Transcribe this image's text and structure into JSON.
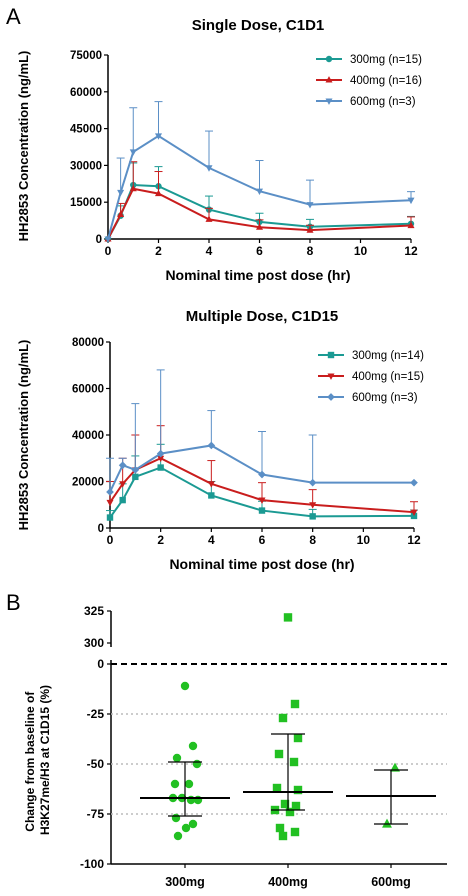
{
  "panel_labels": {
    "a": "A",
    "b": "B"
  },
  "colors": {
    "teal": "#1b9a93",
    "red": "#c91d1d",
    "blue": "#5b8fc6",
    "green": "#22c022",
    "axis": "#000000",
    "grid": "#bbbbbb"
  },
  "chart_data": [
    {
      "type": "line",
      "title": "Single Dose, C1D1",
      "xlabel": "Nominal time post dose (hr)",
      "ylabel": "HH2853 Concentration (ng/mL)",
      "xlim": [
        0,
        12
      ],
      "ylim": [
        0,
        75000
      ],
      "xticks": [
        0,
        2,
        4,
        6,
        8,
        10,
        12
      ],
      "yticks": [
        0,
        15000,
        30000,
        45000,
        60000,
        75000
      ],
      "legend_position": "top-right",
      "series": [
        {
          "name": "300mg (n=15)",
          "color": "#1b9a93",
          "marker": "circle",
          "x": [
            0,
            0.5,
            1,
            2,
            4,
            6,
            8,
            12
          ],
          "y": [
            0,
            9500,
            22000,
            21500,
            12000,
            7000,
            5000,
            6200
          ],
          "err": [
            0,
            4000,
            9000,
            8000,
            5500,
            3500,
            3000,
            3000
          ]
        },
        {
          "name": "400mg (n=16)",
          "color": "#c91d1d",
          "marker": "triangle-up",
          "x": [
            0,
            0.5,
            1,
            2,
            4,
            6,
            8,
            12
          ],
          "y": [
            0,
            10000,
            20500,
            18500,
            8000,
            4800,
            3600,
            5500
          ],
          "err": [
            0,
            4500,
            11000,
            9000,
            4500,
            3000,
            2000,
            3500
          ]
        },
        {
          "name": "600mg (n=3)",
          "color": "#5b8fc6",
          "marker": "triangle-down",
          "x": [
            0,
            0.5,
            1,
            2,
            4,
            6,
            8,
            12
          ],
          "y": [
            0,
            19000,
            35500,
            42000,
            29000,
            19500,
            14000,
            15800
          ],
          "err": [
            0,
            14000,
            18000,
            14000,
            15000,
            12500,
            10000,
            3500
          ]
        }
      ]
    },
    {
      "type": "line",
      "title": "Multiple Dose, C1D15",
      "xlabel": "Nominal time post dose (hr)",
      "ylabel": "HH2853 Concentration (ng/mL)",
      "xlim": [
        0,
        12
      ],
      "ylim": [
        0,
        80000
      ],
      "xticks": [
        0,
        2,
        4,
        6,
        8,
        10,
        12
      ],
      "yticks": [
        0,
        20000,
        40000,
        60000,
        80000
      ],
      "legend_position": "top-right",
      "series": [
        {
          "name": "300mg (n=14)",
          "color": "#1b9a93",
          "marker": "square",
          "x": [
            0,
            0.5,
            1,
            2,
            4,
            6,
            8,
            12
          ],
          "y": [
            4500,
            12000,
            22000,
            26000,
            14000,
            7500,
            5000,
            5200
          ],
          "err": [
            3000,
            7000,
            9000,
            10000,
            6000,
            4000,
            3000,
            2500
          ]
        },
        {
          "name": "400mg (n=15)",
          "color": "#c91d1d",
          "marker": "triangle-down",
          "x": [
            0,
            0.5,
            1,
            2,
            4,
            6,
            8,
            12
          ],
          "y": [
            11000,
            19000,
            25000,
            30000,
            19000,
            12000,
            10000,
            6800
          ],
          "err": [
            9000,
            11000,
            15000,
            14000,
            10000,
            7500,
            6500,
            4500
          ]
        },
        {
          "name": "600mg (n=3)",
          "color": "#5b8fc6",
          "marker": "diamond",
          "x": [
            0,
            0.5,
            1,
            2,
            4,
            6,
            8,
            12
          ],
          "y": [
            15500,
            27000,
            25000,
            32000,
            35500,
            23000,
            19500,
            19500
          ],
          "err": [
            14500,
            3000,
            28500,
            36000,
            15000,
            18500,
            20500,
            0
          ]
        }
      ]
    },
    {
      "type": "scatter",
      "xlabel": "",
      "ylabel": "Change from baseline of H3K27me/H3 at C1D15 (%)",
      "ylabel_lines": [
        "Change from baseline of",
        "H3K27me/H3 at C1D15 (%)"
      ],
      "ylim": [
        -100,
        325
      ],
      "yticks": [
        325,
        300,
        0,
        -25,
        -50,
        -75,
        -100
      ],
      "axis_break": [
        5,
        295
      ],
      "reference_line": 0,
      "grid_lines": [
        -25,
        -50,
        -75
      ],
      "categories": [
        "300mg",
        "400mg",
        "600mg"
      ],
      "groups": [
        {
          "name": "300mg",
          "marker": "circle",
          "color": "#22c022",
          "values": [
            -11,
            -41,
            -47,
            -50,
            -60,
            -60,
            -67,
            -67,
            -68,
            -68,
            -77,
            -80,
            -82,
            -86
          ],
          "offsets": [
            0,
            0.08,
            -0.08,
            0.12,
            -0.1,
            0.04,
            -0.12,
            -0.03,
            0.06,
            0.13,
            -0.09,
            0.08,
            0.01,
            -0.07
          ],
          "median": -67,
          "error_low": -76,
          "error_high": -49
        },
        {
          "name": "400mg",
          "marker": "square",
          "color": "#22c022",
          "values": [
            320,
            -20,
            -27,
            -37,
            -45,
            -49,
            -62,
            -63,
            -70,
            -71,
            -73,
            -74,
            -82,
            -84,
            -86
          ],
          "offsets": [
            0,
            0.07,
            -0.05,
            0.1,
            -0.09,
            0.06,
            -0.11,
            0.1,
            -0.03,
            0.08,
            -0.13,
            0.02,
            -0.08,
            0.07,
            -0.05
          ],
          "median": -64,
          "error_low": -73,
          "error_high": -35
        },
        {
          "name": "600mg",
          "marker": "triangle-up",
          "color": "#22c022",
          "values": [
            -52,
            -80
          ],
          "offsets": [
            0.04,
            -0.04
          ],
          "median": -66,
          "error_low": -80,
          "error_high": -53
        }
      ]
    }
  ]
}
